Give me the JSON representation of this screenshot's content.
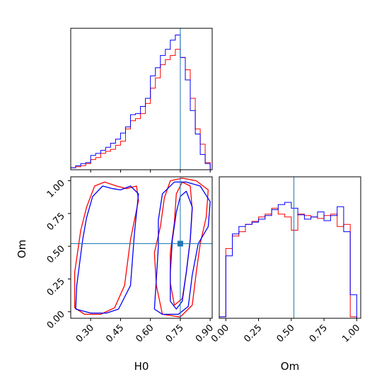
{
  "chart_data": {
    "type": "corner",
    "parameters": [
      "H0",
      "Om"
    ],
    "truth": {
      "H0": 0.75,
      "Om": 0.52
    },
    "colors": {
      "series_a": "#0000ff",
      "series_b": "#ff0000",
      "truth": "#1f77b4"
    },
    "xlabel_bottom_left": "H0",
    "ylabel_bottom_left": "Om",
    "xlabel_bottom_right": "Om",
    "h0_ticks": [
      "0.30",
      "0.45",
      "0.60",
      "0.75",
      "0.90"
    ],
    "om_ticks": [
      "0.00",
      "0.25",
      "0.50",
      "0.75",
      "1.00"
    ],
    "h0_range": [
      0.2,
      0.91
    ],
    "om_range": [
      -0.05,
      1.03
    ],
    "hist_h0": {
      "bin_edges": [
        0.2,
        0.225,
        0.25,
        0.275,
        0.3,
        0.325,
        0.35,
        0.375,
        0.4,
        0.425,
        0.45,
        0.475,
        0.5,
        0.525,
        0.55,
        0.575,
        0.6,
        0.625,
        0.65,
        0.675,
        0.7,
        0.725,
        0.75,
        0.775,
        0.8,
        0.825,
        0.85,
        0.875,
        0.9
      ],
      "blue": [
        2,
        4,
        6,
        7,
        14,
        16,
        19,
        22,
        26,
        30,
        36,
        42,
        54,
        55,
        62,
        70,
        92,
        100,
        112,
        118,
        127,
        132,
        110,
        88,
        58,
        35,
        15,
        6
      ],
      "red": [
        2,
        3,
        4,
        6,
        10,
        12,
        16,
        18,
        20,
        24,
        28,
        40,
        48,
        50,
        55,
        65,
        80,
        90,
        103,
        108,
        112,
        118,
        110,
        98,
        70,
        40,
        25,
        7
      ]
    },
    "hist_om": {
      "bin_edges": [
        -0.05,
        0.0,
        0.05,
        0.1,
        0.15,
        0.2,
        0.25,
        0.3,
        0.35,
        0.4,
        0.45,
        0.5,
        0.55,
        0.6,
        0.65,
        0.7,
        0.75,
        0.8,
        0.85,
        0.9,
        0.95,
        1.0
      ],
      "blue": [
        2,
        85,
        115,
        125,
        128,
        131,
        135,
        140,
        148,
        155,
        158,
        150,
        141,
        135,
        138,
        145,
        133,
        140,
        152,
        118,
        32
      ],
      "red": [
        2,
        95,
        112,
        118,
        128,
        132,
        138,
        142,
        150,
        142,
        138,
        120,
        142,
        140,
        138,
        136,
        140,
        142,
        125,
        128,
        2
      ]
    },
    "contours": {
      "blue": [
        [
          [
            0.225,
            0.02
          ],
          [
            0.23,
            0.2
          ],
          [
            0.26,
            0.55
          ],
          [
            0.28,
            0.72
          ],
          [
            0.31,
            0.88
          ],
          [
            0.36,
            0.96
          ],
          [
            0.41,
            0.94
          ],
          [
            0.45,
            0.93
          ],
          [
            0.5,
            0.96
          ],
          [
            0.54,
            0.9
          ],
          [
            0.52,
            0.6
          ],
          [
            0.5,
            0.2
          ],
          [
            0.44,
            0.02
          ],
          [
            0.38,
            -0.01
          ],
          [
            0.3,
            -0.01
          ],
          [
            0.225,
            0.02
          ]
        ],
        [
          [
            0.62,
            0.02
          ],
          [
            0.63,
            0.25
          ],
          [
            0.64,
            0.5
          ],
          [
            0.64,
            0.7
          ],
          [
            0.66,
            0.9
          ],
          [
            0.72,
            0.99
          ],
          [
            0.78,
            0.99
          ],
          [
            0.85,
            0.96
          ],
          [
            0.9,
            0.84
          ],
          [
            0.89,
            0.65
          ],
          [
            0.84,
            0.52
          ],
          [
            0.81,
            0.28
          ],
          [
            0.79,
            0.04
          ],
          [
            0.74,
            -0.02
          ],
          [
            0.66,
            -0.02
          ],
          [
            0.62,
            0.02
          ]
        ],
        [
          [
            0.7,
            0.08
          ],
          [
            0.7,
            0.3
          ],
          [
            0.71,
            0.55
          ],
          [
            0.73,
            0.76
          ],
          [
            0.75,
            0.88
          ],
          [
            0.78,
            0.92
          ],
          [
            0.81,
            0.8
          ],
          [
            0.8,
            0.55
          ],
          [
            0.78,
            0.3
          ],
          [
            0.76,
            0.08
          ],
          [
            0.73,
            0.02
          ],
          [
            0.7,
            0.08
          ]
        ]
      ],
      "red": [
        [
          [
            0.22,
            0.03
          ],
          [
            0.22,
            0.3
          ],
          [
            0.25,
            0.62
          ],
          [
            0.28,
            0.8
          ],
          [
            0.32,
            0.96
          ],
          [
            0.37,
            0.99
          ],
          [
            0.43,
            0.96
          ],
          [
            0.48,
            0.94
          ],
          [
            0.53,
            0.96
          ],
          [
            0.54,
            0.85
          ],
          [
            0.5,
            0.55
          ],
          [
            0.47,
            0.2
          ],
          [
            0.42,
            0.03
          ],
          [
            0.35,
            -0.02
          ],
          [
            0.27,
            -0.02
          ],
          [
            0.22,
            0.03
          ]
        ],
        [
          [
            0.66,
            -0.02
          ],
          [
            0.63,
            0.2
          ],
          [
            0.62,
            0.45
          ],
          [
            0.65,
            0.65
          ],
          [
            0.67,
            0.87
          ],
          [
            0.7,
            1.0
          ],
          [
            0.76,
            1.02
          ],
          [
            0.83,
            1.0
          ],
          [
            0.89,
            0.93
          ],
          [
            0.88,
            0.72
          ],
          [
            0.85,
            0.52
          ],
          [
            0.83,
            0.3
          ],
          [
            0.81,
            0.05
          ],
          [
            0.75,
            -0.04
          ],
          [
            0.66,
            -0.02
          ]
        ],
        [
          [
            0.72,
            0.05
          ],
          [
            0.7,
            0.22
          ],
          [
            0.7,
            0.45
          ],
          [
            0.72,
            0.68
          ],
          [
            0.73,
            0.9
          ],
          [
            0.76,
            0.99
          ],
          [
            0.8,
            0.96
          ],
          [
            0.81,
            0.78
          ],
          [
            0.8,
            0.55
          ],
          [
            0.78,
            0.3
          ],
          [
            0.76,
            0.1
          ],
          [
            0.72,
            0.05
          ]
        ]
      ]
    }
  }
}
